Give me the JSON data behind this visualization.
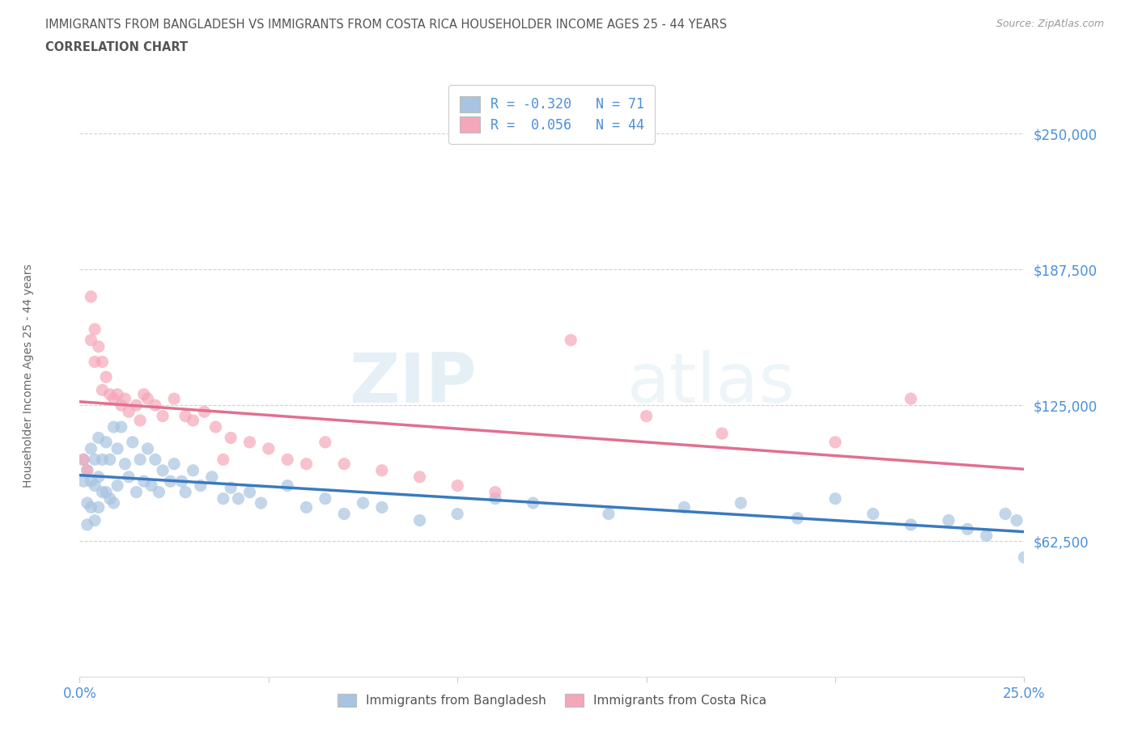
{
  "title_line1": "IMMIGRANTS FROM BANGLADESH VS IMMIGRANTS FROM COSTA RICA HOUSEHOLDER INCOME AGES 25 - 44 YEARS",
  "title_line2": "CORRELATION CHART",
  "source_text": "Source: ZipAtlas.com",
  "ylabel": "Householder Income Ages 25 - 44 years",
  "xlim": [
    0.0,
    0.25
  ],
  "ylim": [
    0,
    270000
  ],
  "yticks": [
    0,
    62500,
    125000,
    187500,
    250000
  ],
  "ytick_labels": [
    "",
    "$62,500",
    "$125,000",
    "$187,500",
    "$250,000"
  ],
  "xticks": [
    0.0,
    0.05,
    0.1,
    0.15,
    0.2,
    0.25
  ],
  "xtick_labels": [
    "0.0%",
    "",
    "",
    "",
    "",
    "25.0%"
  ],
  "watermark_zip": "ZIP",
  "watermark_atlas": "atlas",
  "bangladesh_color": "#a8c4e0",
  "costarica_color": "#f4a7b9",
  "bangladesh_line_color": "#3a7abf",
  "costarica_line_color": "#e07090",
  "R_bangladesh": -0.32,
  "N_bangladesh": 71,
  "R_costarica": 0.056,
  "N_costarica": 44,
  "bangladesh_x": [
    0.001,
    0.001,
    0.002,
    0.002,
    0.002,
    0.003,
    0.003,
    0.003,
    0.004,
    0.004,
    0.004,
    0.005,
    0.005,
    0.005,
    0.006,
    0.006,
    0.007,
    0.007,
    0.008,
    0.008,
    0.009,
    0.009,
    0.01,
    0.01,
    0.011,
    0.012,
    0.013,
    0.014,
    0.015,
    0.016,
    0.017,
    0.018,
    0.019,
    0.02,
    0.021,
    0.022,
    0.024,
    0.025,
    0.027,
    0.028,
    0.03,
    0.032,
    0.035,
    0.038,
    0.04,
    0.042,
    0.045,
    0.048,
    0.055,
    0.06,
    0.065,
    0.07,
    0.075,
    0.08,
    0.09,
    0.1,
    0.11,
    0.12,
    0.14,
    0.16,
    0.175,
    0.19,
    0.2,
    0.21,
    0.22,
    0.23,
    0.235,
    0.24,
    0.245,
    0.248,
    0.25
  ],
  "bangladesh_y": [
    100000,
    90000,
    95000,
    80000,
    70000,
    105000,
    90000,
    78000,
    100000,
    88000,
    72000,
    110000,
    92000,
    78000,
    100000,
    85000,
    108000,
    85000,
    100000,
    82000,
    115000,
    80000,
    105000,
    88000,
    115000,
    98000,
    92000,
    108000,
    85000,
    100000,
    90000,
    105000,
    88000,
    100000,
    85000,
    95000,
    90000,
    98000,
    90000,
    85000,
    95000,
    88000,
    92000,
    82000,
    87000,
    82000,
    85000,
    80000,
    88000,
    78000,
    82000,
    75000,
    80000,
    78000,
    72000,
    75000,
    82000,
    80000,
    75000,
    78000,
    80000,
    73000,
    82000,
    75000,
    70000,
    72000,
    68000,
    65000,
    75000,
    72000,
    55000
  ],
  "costarica_x": [
    0.001,
    0.002,
    0.003,
    0.003,
    0.004,
    0.004,
    0.005,
    0.006,
    0.006,
    0.007,
    0.008,
    0.009,
    0.01,
    0.011,
    0.012,
    0.013,
    0.015,
    0.016,
    0.017,
    0.018,
    0.02,
    0.022,
    0.025,
    0.028,
    0.03,
    0.033,
    0.036,
    0.038,
    0.04,
    0.045,
    0.05,
    0.055,
    0.06,
    0.065,
    0.07,
    0.08,
    0.09,
    0.1,
    0.11,
    0.13,
    0.15,
    0.17,
    0.2,
    0.22
  ],
  "costarica_y": [
    100000,
    95000,
    175000,
    155000,
    160000,
    145000,
    152000,
    145000,
    132000,
    138000,
    130000,
    128000,
    130000,
    125000,
    128000,
    122000,
    125000,
    118000,
    130000,
    128000,
    125000,
    120000,
    128000,
    120000,
    118000,
    122000,
    115000,
    100000,
    110000,
    108000,
    105000,
    100000,
    98000,
    108000,
    98000,
    95000,
    92000,
    88000,
    85000,
    155000,
    120000,
    112000,
    108000,
    128000
  ],
  "grid_color": "#cccccc",
  "background_color": "#ffffff",
  "title_color": "#555555",
  "axis_label_color": "#666666",
  "tick_label_color": "#4a90d9",
  "legend_label_color": "#4a90d9"
}
